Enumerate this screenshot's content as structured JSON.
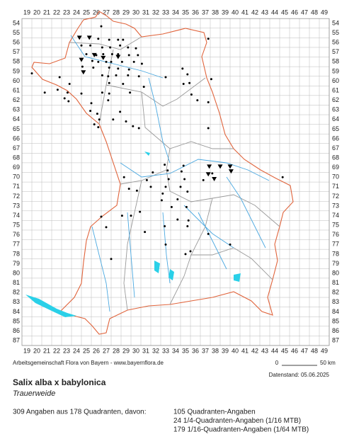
{
  "header": {
    "columns": [
      19,
      20,
      21,
      22,
      23,
      24,
      25,
      26,
      27,
      28,
      29,
      30,
      31,
      32,
      33,
      34,
      35,
      36,
      37,
      38,
      39,
      40,
      41,
      42,
      43,
      44,
      45,
      46,
      47,
      48,
      49
    ],
    "rows": [
      54,
      55,
      56,
      57,
      58,
      59,
      60,
      61,
      62,
      63,
      64,
      65,
      66,
      67,
      68,
      69,
      70,
      71,
      72,
      73,
      74,
      75,
      76,
      77,
      78,
      79,
      80,
      81,
      82,
      83,
      84,
      85,
      86,
      87
    ]
  },
  "map": {
    "points": [
      [
        26.5,
        54.3
      ],
      [
        26.2,
        55.6
      ],
      [
        27.3,
        55.7
      ],
      [
        28.2,
        55.7
      ],
      [
        28.7,
        55.7
      ],
      [
        37.3,
        55.6
      ],
      [
        24.5,
        56.3
      ],
      [
        25.4,
        56.3
      ],
      [
        26.6,
        56.5
      ],
      [
        27.4,
        56.5
      ],
      [
        28.4,
        56.3
      ],
      [
        29.2,
        56.5
      ],
      [
        30,
        56.6
      ],
      [
        25,
        57.2
      ],
      [
        26,
        57.3
      ],
      [
        26.7,
        57.2
      ],
      [
        27.6,
        57.2
      ],
      [
        28.2,
        57.2
      ],
      [
        29.3,
        57.3
      ],
      [
        30.2,
        57.3
      ],
      [
        25.6,
        57.9
      ],
      [
        26.2,
        58
      ],
      [
        27,
        58
      ],
      [
        27.5,
        58
      ],
      [
        28.6,
        58
      ],
      [
        29.8,
        58
      ],
      [
        30.6,
        58.2
      ],
      [
        24.6,
        58.5
      ],
      [
        25.7,
        58.6
      ],
      [
        27.3,
        58.6
      ],
      [
        28.2,
        58.7
      ],
      [
        29.3,
        58.8
      ],
      [
        34.7,
        58.7
      ],
      [
        19.5,
        59.2
      ],
      [
        22.3,
        59.6
      ],
      [
        26.6,
        59.4
      ],
      [
        27.2,
        59.5
      ],
      [
        28,
        59.4
      ],
      [
        29.2,
        59.4
      ],
      [
        30.3,
        59.5
      ],
      [
        33,
        59.6
      ],
      [
        35.2,
        59.3
      ],
      [
        37.6,
        59.8
      ],
      [
        23.3,
        60.3
      ],
      [
        27.3,
        60.2
      ],
      [
        28.7,
        60.3
      ],
      [
        30.8,
        60.6
      ],
      [
        34.8,
        60.3
      ],
      [
        35.4,
        60.2
      ],
      [
        22.1,
        60.9
      ],
      [
        20.8,
        61.2
      ],
      [
        23.1,
        61.2
      ],
      [
        24.5,
        61.3
      ],
      [
        26.6,
        61.2
      ],
      [
        27.3,
        61.3
      ],
      [
        29.4,
        61.2
      ],
      [
        35.6,
        61.4
      ],
      [
        22.8,
        61.8
      ],
      [
        23.2,
        62.1
      ],
      [
        25.5,
        62.3
      ],
      [
        27.2,
        62
      ],
      [
        36.2,
        62
      ],
      [
        37.3,
        62.2
      ],
      [
        25.4,
        63.1
      ],
      [
        26.1,
        63.4
      ],
      [
        28.4,
        63.2
      ],
      [
        26.3,
        64
      ],
      [
        27.7,
        64
      ],
      [
        29,
        64.2
      ],
      [
        25.8,
        64.5
      ],
      [
        26.2,
        64.8
      ],
      [
        29.7,
        64.7
      ],
      [
        30.3,
        64.9
      ],
      [
        37.3,
        64.9
      ],
      [
        32.9,
        68.7
      ],
      [
        34.8,
        68.8
      ],
      [
        31.7,
        69.5
      ],
      [
        33.2,
        69.3
      ],
      [
        34.6,
        69.4
      ],
      [
        37.7,
        69.6
      ],
      [
        44.8,
        70
      ],
      [
        28.8,
        70
      ],
      [
        31.1,
        70.3
      ],
      [
        33.3,
        70.2
      ],
      [
        34.9,
        70.2
      ],
      [
        36.8,
        70.3
      ],
      [
        31.5,
        71
      ],
      [
        33,
        71
      ],
      [
        34.5,
        71
      ],
      [
        29.3,
        71.2
      ],
      [
        30.1,
        71.4
      ],
      [
        32.7,
        71.7
      ],
      [
        35.2,
        71.5
      ],
      [
        32.6,
        72.4
      ],
      [
        34.2,
        72.3
      ],
      [
        33.6,
        73.1
      ],
      [
        35.1,
        73.1
      ],
      [
        26.5,
        74.1
      ],
      [
        28.6,
        74
      ],
      [
        29.5,
        74
      ],
      [
        30.4,
        73.6
      ],
      [
        34.2,
        74.4
      ],
      [
        35.3,
        74.5
      ],
      [
        27,
        75.2
      ],
      [
        32.9,
        75.1
      ],
      [
        35.2,
        75.1
      ],
      [
        30.9,
        75.7
      ],
      [
        37.3,
        75.9
      ],
      [
        39.5,
        77
      ],
      [
        33,
        77
      ],
      [
        35.5,
        77.7
      ],
      [
        35,
        78
      ],
      [
        27.5,
        78.5
      ]
    ],
    "triangles": [
      [
        24.3,
        55.5
      ],
      [
        25.3,
        55.5
      ],
      [
        24.5,
        57.8
      ],
      [
        25.8,
        57.3
      ],
      [
        26.7,
        57.6
      ],
      [
        28.2,
        57.5
      ],
      [
        24.7,
        59.1
      ],
      [
        37.4,
        68.9
      ],
      [
        38.5,
        68.9
      ],
      [
        39.5,
        68.9
      ],
      [
        39.6,
        69.4
      ],
      [
        37.3,
        69.7
      ],
      [
        37.9,
        70.2
      ]
    ]
  },
  "footer": {
    "credit": "Arbeitsgemeinschaft Flora von Bayern - www.bayernflora.de",
    "scale_start": "0",
    "scale_end": "50 km",
    "date": "Datenstand: 05.06.2025",
    "title": "Salix alba x babylonica",
    "common_name": "Trauerweide",
    "summary": "309 Angaben aus 178 Quadranten, davon:",
    "breakdown": [
      "105 Quadranten-Angaben",
      "24 1/4-Quadranten-Angaben (1/16 MTB)",
      "179 1/16-Quadranten-Angaben (1/64 MTB)"
    ]
  }
}
